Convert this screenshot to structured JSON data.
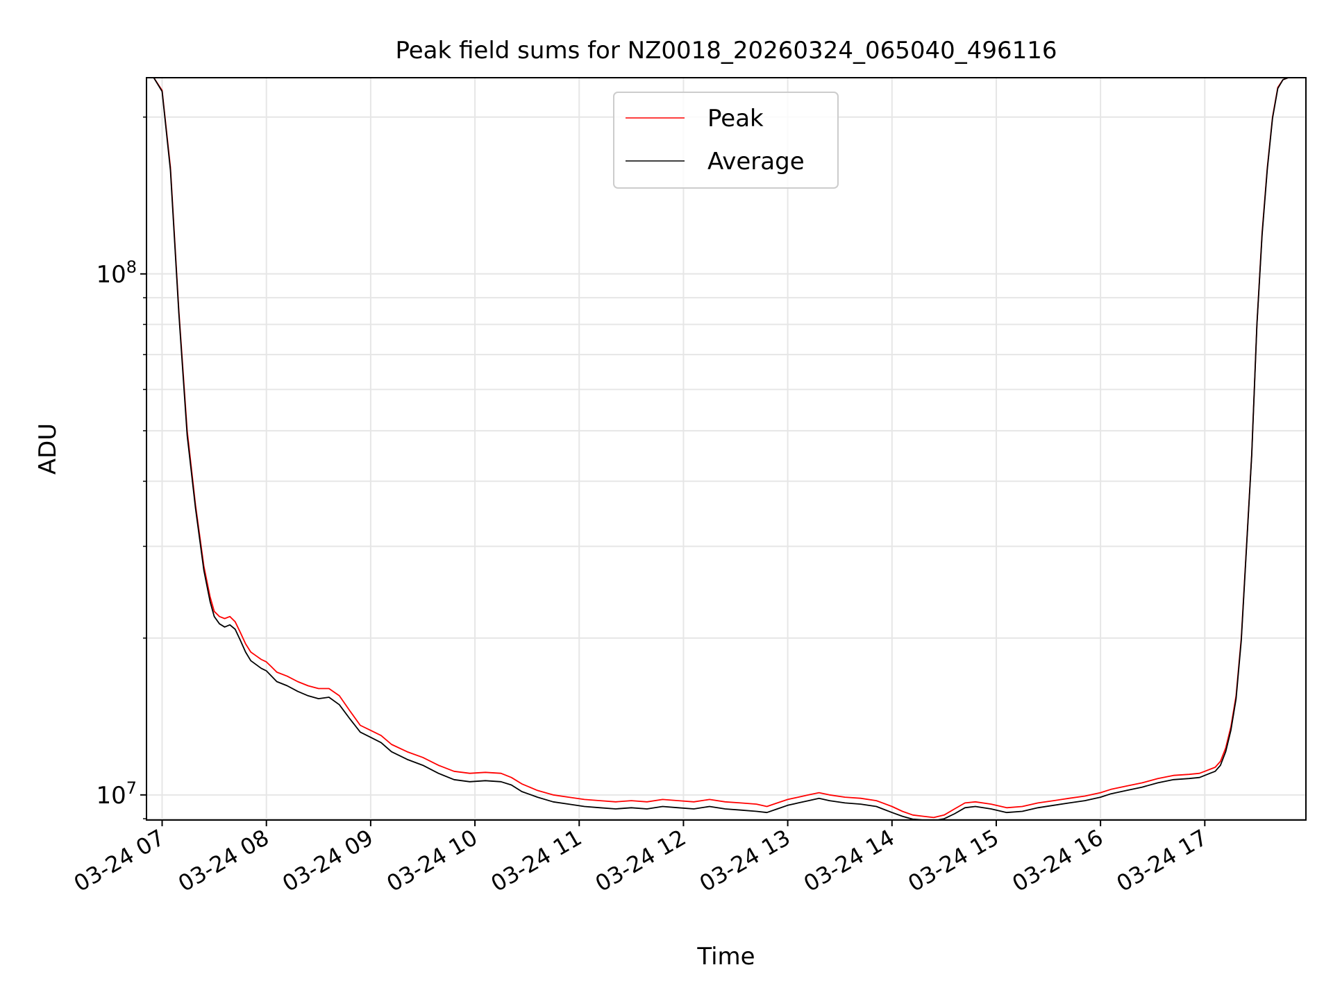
{
  "chart_data": {
    "type": "line",
    "title": "Peak field sums for NZ0018_20260324_065040_496116",
    "xlabel": "Time",
    "ylabel": "ADU",
    "y_scale": "log",
    "ylim": [
      8950000,
      238000000
    ],
    "xlim_hours": [
      6.85,
      17.97
    ],
    "grid": true,
    "legend_position": "upper center",
    "x_ticks": [
      {
        "hour": 7,
        "label": "03-24 07"
      },
      {
        "hour": 8,
        "label": "03-24 08"
      },
      {
        "hour": 9,
        "label": "03-24 09"
      },
      {
        "hour": 10,
        "label": "03-24 10"
      },
      {
        "hour": 11,
        "label": "03-24 11"
      },
      {
        "hour": 12,
        "label": "03-24 12"
      },
      {
        "hour": 13,
        "label": "03-24 13"
      },
      {
        "hour": 14,
        "label": "03-24 14"
      },
      {
        "hour": 15,
        "label": "03-24 15"
      },
      {
        "hour": 16,
        "label": "03-24 16"
      },
      {
        "hour": 17,
        "label": "03-24 17"
      }
    ],
    "y_major_ticks": [
      {
        "value": 10000000,
        "base": "10",
        "exp": "7"
      },
      {
        "value": 100000000,
        "base": "10",
        "exp": "8"
      }
    ],
    "y_minor_ticks": [
      9000000,
      20000000,
      30000000,
      40000000,
      50000000,
      60000000,
      70000000,
      80000000,
      90000000,
      200000000
    ],
    "series": [
      {
        "name": "Peak",
        "color": "#ff0000",
        "x_hours": [
          6.85,
          6.92,
          7.0,
          7.08,
          7.16,
          7.24,
          7.32,
          7.4,
          7.46,
          7.5,
          7.55,
          7.6,
          7.65,
          7.7,
          7.75,
          7.8,
          7.85,
          7.9,
          7.95,
          8.0,
          8.05,
          8.1,
          8.2,
          8.3,
          8.4,
          8.5,
          8.6,
          8.7,
          8.8,
          8.9,
          9.0,
          9.1,
          9.2,
          9.35,
          9.5,
          9.65,
          9.8,
          9.95,
          10.1,
          10.25,
          10.35,
          10.45,
          10.6,
          10.75,
          10.9,
          11.05,
          11.2,
          11.35,
          11.5,
          11.65,
          11.8,
          11.95,
          12.1,
          12.25,
          12.4,
          12.55,
          12.7,
          12.8,
          12.9,
          13.0,
          13.1,
          13.2,
          13.3,
          13.4,
          13.55,
          13.7,
          13.85,
          14.0,
          14.1,
          14.2,
          14.3,
          14.4,
          14.5,
          14.6,
          14.7,
          14.8,
          14.95,
          15.1,
          15.25,
          15.4,
          15.55,
          15.7,
          15.85,
          16.0,
          16.1,
          16.25,
          16.4,
          16.55,
          16.7,
          16.85,
          16.95,
          17.0,
          17.05,
          17.1,
          17.15,
          17.2,
          17.25,
          17.3,
          17.35,
          17.4,
          17.45,
          17.5,
          17.55,
          17.6,
          17.65,
          17.7,
          17.75,
          17.8,
          17.85,
          17.9,
          17.97
        ],
        "values": [
          238000000,
          238000000,
          225000000,
          160000000,
          85000000,
          50000000,
          36000000,
          27500000,
          24000000,
          22500000,
          22000000,
          21800000,
          22000000,
          21500000,
          20500000,
          19500000,
          18800000,
          18500000,
          18200000,
          18000000,
          17600000,
          17200000,
          16900000,
          16500000,
          16200000,
          16000000,
          16000000,
          15500000,
          14500000,
          13600000,
          13300000,
          13000000,
          12500000,
          12100000,
          11800000,
          11400000,
          11100000,
          11000000,
          11050000,
          11000000,
          10800000,
          10500000,
          10200000,
          10000000,
          9900000,
          9800000,
          9750000,
          9700000,
          9750000,
          9700000,
          9800000,
          9750000,
          9700000,
          9800000,
          9700000,
          9650000,
          9600000,
          9500000,
          9650000,
          9800000,
          9900000,
          10000000,
          10100000,
          10000000,
          9900000,
          9850000,
          9750000,
          9500000,
          9300000,
          9150000,
          9100000,
          9050000,
          9150000,
          9400000,
          9650000,
          9700000,
          9600000,
          9450000,
          9500000,
          9650000,
          9750000,
          9850000,
          9950000,
          10100000,
          10250000,
          10400000,
          10550000,
          10750000,
          10900000,
          10950000,
          11000000,
          11100000,
          11200000,
          11300000,
          11600000,
          12300000,
          13500000,
          15500000,
          20000000,
          30000000,
          45000000,
          80000000,
          120000000,
          160000000,
          200000000,
          228000000,
          236000000,
          238000000,
          238000000,
          238000000,
          238000000
        ]
      },
      {
        "name": "Average",
        "color": "#000000",
        "x_hours": [
          6.85,
          6.92,
          7.0,
          7.08,
          7.16,
          7.24,
          7.32,
          7.4,
          7.46,
          7.5,
          7.55,
          7.6,
          7.65,
          7.7,
          7.75,
          7.8,
          7.85,
          7.9,
          7.95,
          8.0,
          8.05,
          8.1,
          8.2,
          8.3,
          8.4,
          8.5,
          8.6,
          8.7,
          8.8,
          8.9,
          9.0,
          9.1,
          9.2,
          9.35,
          9.5,
          9.65,
          9.8,
          9.95,
          10.1,
          10.25,
          10.35,
          10.45,
          10.6,
          10.75,
          10.9,
          11.05,
          11.2,
          11.35,
          11.5,
          11.65,
          11.8,
          11.95,
          12.1,
          12.25,
          12.4,
          12.55,
          12.7,
          12.8,
          12.9,
          13.0,
          13.1,
          13.2,
          13.3,
          13.4,
          13.55,
          13.7,
          13.85,
          14.0,
          14.1,
          14.2,
          14.3,
          14.4,
          14.5,
          14.6,
          14.7,
          14.8,
          14.95,
          15.1,
          15.25,
          15.4,
          15.55,
          15.7,
          15.85,
          16.0,
          16.1,
          16.25,
          16.4,
          16.55,
          16.7,
          16.85,
          16.95,
          17.0,
          17.05,
          17.1,
          17.15,
          17.2,
          17.25,
          17.3,
          17.35,
          17.4,
          17.45,
          17.5,
          17.55,
          17.6,
          17.65,
          17.7,
          17.75,
          17.8,
          17.85,
          17.9,
          17.97
        ],
        "values": [
          238000000,
          238000000,
          224000000,
          158000000,
          84000000,
          49000000,
          35500000,
          27000000,
          23500000,
          22000000,
          21300000,
          21000000,
          21200000,
          20800000,
          19800000,
          18800000,
          18100000,
          17800000,
          17500000,
          17300000,
          16900000,
          16500000,
          16200000,
          15800000,
          15500000,
          15300000,
          15400000,
          14900000,
          14000000,
          13200000,
          12900000,
          12600000,
          12100000,
          11700000,
          11400000,
          11000000,
          10700000,
          10600000,
          10650000,
          10600000,
          10450000,
          10150000,
          9900000,
          9700000,
          9600000,
          9500000,
          9450000,
          9400000,
          9450000,
          9400000,
          9500000,
          9450000,
          9400000,
          9500000,
          9400000,
          9350000,
          9300000,
          9250000,
          9400000,
          9550000,
          9650000,
          9750000,
          9850000,
          9750000,
          9650000,
          9600000,
          9500000,
          9250000,
          9100000,
          8980000,
          8950000,
          8920000,
          9000000,
          9200000,
          9450000,
          9500000,
          9400000,
          9250000,
          9300000,
          9450000,
          9550000,
          9650000,
          9750000,
          9900000,
          10050000,
          10200000,
          10350000,
          10550000,
          10700000,
          10750000,
          10800000,
          10900000,
          11000000,
          11100000,
          11400000,
          12100000,
          13300000,
          15300000,
          19800000,
          29800000,
          44800000,
          79800000,
          119000000,
          159000000,
          199000000,
          227000000,
          236000000,
          238000000,
          238000000,
          238000000,
          238000000
        ]
      }
    ]
  }
}
